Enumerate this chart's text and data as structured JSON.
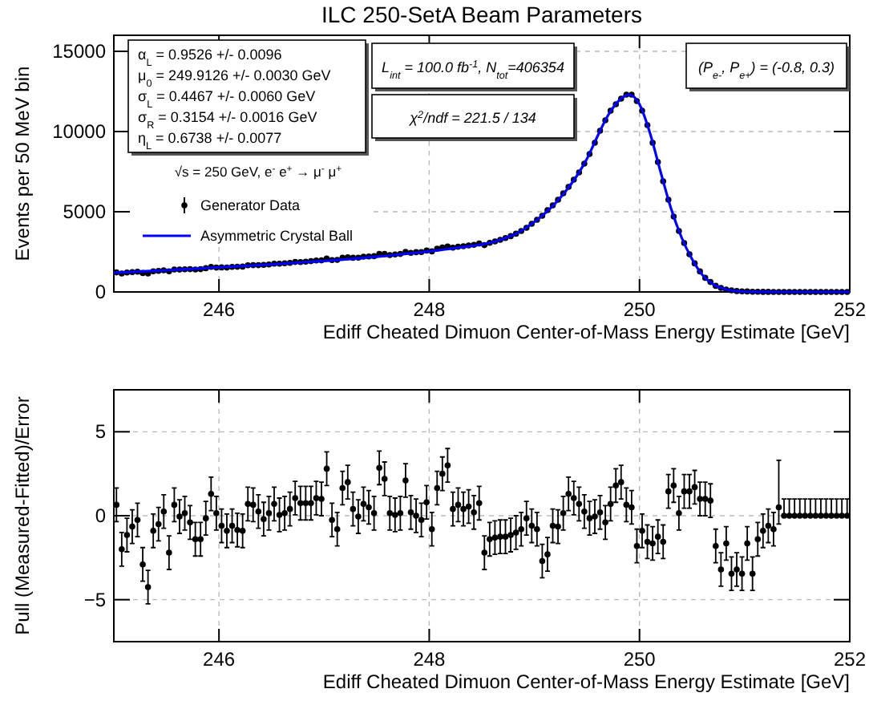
{
  "chart_data": [
    {
      "type": "scatter",
      "title": "ILC 250-SetA Beam Parameters",
      "xlabel": "Ediff Cheated Dimuon Center-of-Mass Energy Estimate [GeV]",
      "ylabel": "Events per 50 MeV bin",
      "xlim": [
        245,
        252
      ],
      "ylim": [
        0,
        16000
      ],
      "xticks": [
        246,
        248,
        250,
        252
      ],
      "yticks": [
        0,
        5000,
        10000,
        15000
      ],
      "grid": true,
      "legend": "left",
      "legend_title": "√s = 250 GeV, e$^{-}$ e$^{+}$ → μ$^{-}$ μ$^{+}$",
      "annotations": [
        "α$_{L}$ =  0.9526 +/- 0.0096",
        "μ$_{0}$ =  249.9126 +/- 0.0030 GeV",
        "σ$_{L}$ =  0.4467 +/- 0.0060 GeV",
        "σ$_{R}$ =  0.3154 +/- 0.0016 GeV",
        "η$_{L}$ =  0.6738 +/- 0.0077",
        "L$_{int}$ = 100.0 fb$^{-1}$, N$_{tot}$=406354",
        "χ$^{2}$/ndf =  221.5 / 134",
        "(P$_{e-}$, P$_{e+}$) = (-0.8, 0.3)"
      ],
      "series": [
        {
          "name": "Generator Data",
          "type": "scatter",
          "marker": "circle",
          "color": "#000000",
          "x": [
            245.025,
            245.075,
            245.125,
            245.175,
            245.225,
            245.275,
            245.325,
            245.375,
            245.425,
            245.475,
            245.525,
            245.575,
            245.625,
            245.675,
            245.725,
            245.775,
            245.825,
            245.875,
            245.925,
            245.975,
            246.025,
            246.075,
            246.125,
            246.175,
            246.225,
            246.275,
            246.325,
            246.375,
            246.425,
            246.475,
            246.525,
            246.575,
            246.625,
            246.675,
            246.725,
            246.775,
            246.825,
            246.875,
            246.925,
            246.975,
            247.025,
            247.075,
            247.125,
            247.175,
            247.225,
            247.275,
            247.325,
            247.375,
            247.425,
            247.475,
            247.525,
            247.575,
            247.625,
            247.675,
            247.725,
            247.775,
            247.825,
            247.875,
            247.925,
            247.975,
            248.025,
            248.075,
            248.125,
            248.175,
            248.225,
            248.275,
            248.325,
            248.375,
            248.425,
            248.475,
            248.525,
            248.575,
            248.625,
            248.675,
            248.725,
            248.775,
            248.825,
            248.875,
            248.925,
            248.975,
            249.025,
            249.075,
            249.125,
            249.175,
            249.225,
            249.275,
            249.325,
            249.375,
            249.425,
            249.475,
            249.525,
            249.575,
            249.625,
            249.675,
            249.725,
            249.775,
            249.825,
            249.875,
            249.925,
            249.975,
            250.025,
            250.075,
            250.125,
            250.175,
            250.225,
            250.275,
            250.325,
            250.375,
            250.425,
            250.475,
            250.525,
            250.575,
            250.625,
            250.675,
            250.725,
            250.775,
            250.825,
            250.875,
            250.925,
            250.975,
            251.025,
            251.075,
            251.125,
            251.175,
            251.225,
            251.275,
            251.325,
            251.375,
            251.425,
            251.475,
            251.525,
            251.575,
            251.625,
            251.675,
            251.725,
            251.775,
            251.825,
            251.875,
            251.925,
            251.975
          ],
          "values": [
            1220,
            1150,
            1210,
            1240,
            1260,
            1180,
            1150,
            1290,
            1310,
            1350,
            1290,
            1400,
            1395,
            1410,
            1420,
            1400,
            1420,
            1480,
            1560,
            1520,
            1530,
            1520,
            1560,
            1570,
            1580,
            1660,
            1670,
            1670,
            1690,
            1710,
            1760,
            1760,
            1790,
            1810,
            1870,
            1860,
            1890,
            1920,
            1960,
            1970,
            2080,
            1990,
            2000,
            2130,
            2160,
            2130,
            2140,
            2200,
            2210,
            2230,
            2370,
            2370,
            2300,
            2340,
            2370,
            2500,
            2440,
            2480,
            2490,
            2580,
            2530,
            2700,
            2770,
            2830,
            2760,
            2820,
            2850,
            2900,
            2940,
            3020,
            2920,
            3060,
            3150,
            3250,
            3360,
            3480,
            3630,
            3800,
            4000,
            4250,
            4500,
            4750,
            5100,
            5400,
            5750,
            6150,
            6550,
            7000,
            7450,
            8000,
            8600,
            9300,
            10050,
            10700,
            11300,
            11700,
            12050,
            12300,
            12300,
            11900,
            11300,
            10400,
            9300,
            8100,
            6900,
            5750,
            4700,
            3800,
            3050,
            2350,
            1780,
            1280,
            880,
            620,
            380,
            250,
            150,
            100,
            55,
            35,
            30,
            15,
            10,
            6,
            4,
            2,
            2,
            0,
            0,
            0,
            0,
            0,
            0,
            0,
            0,
            0,
            0,
            0,
            0,
            0
          ]
        },
        {
          "name": "Asymmetric Crystal Ball",
          "type": "line",
          "color": "#0000ff",
          "x": [
            245,
            245.1,
            245.2,
            245.3,
            245.4,
            245.5,
            245.6,
            245.7,
            245.8,
            245.9,
            246,
            246.1,
            246.2,
            246.3,
            246.4,
            246.5,
            246.6,
            246.7,
            246.8,
            246.9,
            247,
            247.1,
            247.2,
            247.3,
            247.4,
            247.5,
            247.6,
            247.7,
            247.8,
            247.9,
            248,
            248.1,
            248.2,
            248.3,
            248.4,
            248.5,
            248.6,
            248.7,
            248.8,
            248.9,
            249,
            249.1,
            249.2,
            249.3,
            249.4,
            249.5,
            249.6,
            249.7,
            249.8,
            249.9,
            250,
            250.1,
            250.2,
            250.3,
            250.4,
            250.5,
            250.6,
            250.7,
            250.8,
            250.9,
            251,
            251.1,
            251.2,
            251.3,
            251.4,
            251.5,
            251.6,
            251.7,
            251.8,
            251.9,
            252
          ],
          "values": [
            1200,
            1230,
            1260,
            1290,
            1320,
            1350,
            1390,
            1420,
            1460,
            1500,
            1530,
            1570,
            1600,
            1640,
            1680,
            1720,
            1760,
            1800,
            1850,
            1890,
            1930,
            1980,
            2030,
            2080,
            2140,
            2190,
            2250,
            2320,
            2390,
            2460,
            2530,
            2610,
            2690,
            2780,
            2870,
            2960,
            3100,
            3300,
            3550,
            3900,
            4370,
            4900,
            5530,
            6300,
            7200,
            8300,
            9700,
            11000,
            11900,
            12300,
            11700,
            9900,
            7500,
            5200,
            3400,
            2050,
            1050,
            480,
            200,
            70,
            25,
            8,
            3,
            1,
            0,
            0,
            0,
            0,
            0,
            0,
            0
          ]
        }
      ]
    },
    {
      "type": "scatter",
      "xlabel": "Ediff Cheated Dimuon Center-of-Mass Energy Estimate [GeV]",
      "ylabel": "Pull (Measured-Fitted)/Error",
      "xlim": [
        245,
        252
      ],
      "ylim": [
        -7.5,
        7.5
      ],
      "xticks": [
        246,
        248,
        250,
        252
      ],
      "yticks": [
        {
          "value": -5,
          "label": "−5"
        },
        0,
        5
      ],
      "grid": true,
      "marker": "circle",
      "series": [
        {
          "color": "#000000",
          "x": [
            245.025,
            245.075,
            245.125,
            245.175,
            245.225,
            245.275,
            245.325,
            245.375,
            245.425,
            245.475,
            245.525,
            245.575,
            245.625,
            245.675,
            245.725,
            245.775,
            245.825,
            245.875,
            245.925,
            245.975,
            246.025,
            246.075,
            246.125,
            246.175,
            246.225,
            246.275,
            246.325,
            246.375,
            246.425,
            246.475,
            246.525,
            246.575,
            246.625,
            246.675,
            246.725,
            246.775,
            246.825,
            246.875,
            246.925,
            246.975,
            247.025,
            247.075,
            247.125,
            247.175,
            247.225,
            247.275,
            247.325,
            247.375,
            247.425,
            247.475,
            247.525,
            247.575,
            247.625,
            247.675,
            247.725,
            247.775,
            247.825,
            247.875,
            247.925,
            247.975,
            248.025,
            248.075,
            248.125,
            248.175,
            248.225,
            248.275,
            248.325,
            248.375,
            248.425,
            248.475,
            248.525,
            248.575,
            248.625,
            248.675,
            248.725,
            248.775,
            248.825,
            248.875,
            248.925,
            248.975,
            249.025,
            249.075,
            249.125,
            249.175,
            249.225,
            249.275,
            249.325,
            249.375,
            249.425,
            249.475,
            249.525,
            249.575,
            249.625,
            249.675,
            249.725,
            249.775,
            249.825,
            249.875,
            249.925,
            249.975,
            250.025,
            250.075,
            250.125,
            250.175,
            250.225,
            250.275,
            250.325,
            250.375,
            250.425,
            250.475,
            250.525,
            250.575,
            250.625,
            250.675,
            250.725,
            250.775,
            250.825,
            250.875,
            250.925,
            250.975,
            251.025,
            251.075,
            251.125,
            251.175,
            251.225,
            251.275,
            251.325,
            251.375,
            251.425,
            251.475,
            251.525,
            251.575,
            251.625,
            251.675,
            251.725,
            251.775,
            251.825,
            251.875,
            251.925,
            251.975
          ],
          "values": [
            0.65,
            -2.0,
            -1.15,
            -0.65,
            -0.25,
            -2.9,
            -4.25,
            -0.9,
            -0.5,
            0.25,
            -2.2,
            0.65,
            -0.05,
            0.15,
            -0.4,
            -1.4,
            -1.4,
            -0.15,
            1.3,
            0.15,
            -0.6,
            -0.9,
            -0.6,
            -0.85,
            -0.9,
            0.7,
            0.65,
            0.25,
            -0.2,
            0.15,
            0.7,
            0.05,
            0.15,
            0.4,
            1.05,
            0.75,
            0.75,
            0.75,
            1.05,
            1.0,
            2.8,
            -0.25,
            -0.8,
            1.65,
            2.0,
            0.4,
            -0.05,
            0.7,
            0.5,
            0.15,
            2.85,
            2.2,
            0.15,
            0.05,
            0.15,
            2.1,
            0.2,
            0,
            -0.25,
            0.8,
            -0.8,
            1.65,
            2.5,
            3.0,
            0.4,
            0.65,
            0.4,
            0.55,
            0.2,
            0.75,
            -2.2,
            -1.4,
            -1.3,
            -1.25,
            -1.25,
            -1.15,
            -1.0,
            -0.8,
            -0.15,
            -0.6,
            -0.8,
            -2.7,
            -2.3,
            -0.6,
            -0.65,
            0.15,
            1.3,
            1.05,
            0.7,
            0.25,
            -0.15,
            -0.05,
            0.2,
            -0.4,
            0.7,
            1.8,
            2.0,
            0.65,
            0.5,
            -1.8,
            -0.9,
            -1.55,
            -1.65,
            -1.25,
            -1.55,
            1.45,
            1.8,
            0.15,
            1.45,
            1.45,
            1.7,
            1.0,
            1.0,
            0.9,
            -1.8,
            -3.2,
            -1.65,
            -3.45,
            -3.2,
            -3.45,
            -1.65,
            -3.45,
            -1.4,
            -0.9,
            -0.6,
            -0.8,
            0.5,
            0,
            0,
            0,
            0,
            0,
            0,
            0,
            0,
            0,
            0,
            0,
            0,
            0
          ],
          "errors": [
            1,
            1,
            1,
            1,
            1,
            1,
            1,
            1,
            1,
            1,
            1,
            1,
            1,
            1,
            1,
            1,
            1,
            1,
            1,
            1,
            1,
            1,
            1,
            1,
            1,
            1,
            1,
            1,
            1,
            1,
            1,
            1,
            1,
            1,
            1,
            1,
            1,
            1,
            1,
            1,
            1,
            1,
            1,
            1,
            1,
            1,
            1,
            1,
            1,
            1,
            1,
            1,
            1,
            1,
            1,
            1,
            1,
            1,
            1,
            1,
            1,
            1,
            1,
            1,
            1,
            1,
            1,
            1,
            1,
            1,
            1,
            1,
            1,
            1,
            1,
            1,
            1,
            1,
            1,
            1,
            1,
            1,
            1,
            1,
            1,
            1,
            1,
            1,
            1,
            1,
            1,
            1,
            1,
            1,
            1,
            1,
            1,
            1,
            1,
            1,
            1,
            1,
            1,
            1,
            1,
            1,
            1,
            1,
            1,
            1,
            1,
            1,
            1,
            1,
            1,
            1,
            1,
            1,
            1,
            1,
            1,
            1,
            1,
            1,
            1,
            1,
            [
              -0.5,
              3.3
            ],
            [
              0,
              1
            ],
            [
              0,
              1
            ],
            [
              0,
              1
            ],
            [
              0,
              1
            ],
            [
              0,
              1
            ],
            [
              0,
              1
            ],
            [
              0,
              1
            ],
            [
              0,
              1
            ],
            [
              0,
              1
            ],
            [
              0,
              1
            ],
            [
              0,
              1
            ],
            [
              0,
              1
            ],
            [
              0,
              1
            ]
          ]
        }
      ]
    }
  ]
}
